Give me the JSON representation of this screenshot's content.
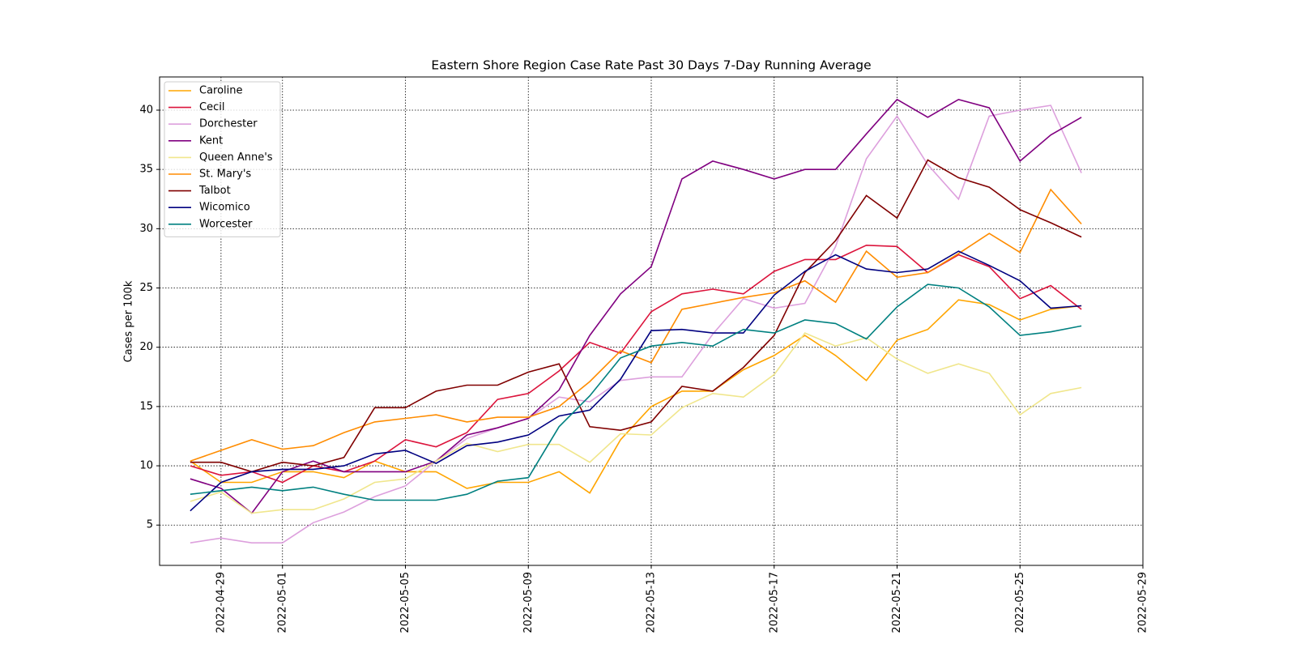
{
  "chart_data": {
    "type": "line",
    "title": "Eastern Shore Region Case Rate  Past 30 Days 7-Day Running Average",
    "y_label": "Cases per 100k",
    "x": [
      "2022-04-28",
      "2022-04-29",
      "2022-04-30",
      "2022-05-01",
      "2022-05-02",
      "2022-05-03",
      "2022-05-04",
      "2022-05-05",
      "2022-05-06",
      "2022-05-07",
      "2022-05-08",
      "2022-05-09",
      "2022-05-10",
      "2022-05-11",
      "2022-05-12",
      "2022-05-13",
      "2022-05-14",
      "2022-05-15",
      "2022-05-16",
      "2022-05-17",
      "2022-05-18",
      "2022-05-19",
      "2022-05-20",
      "2022-05-21",
      "2022-05-22",
      "2022-05-23",
      "2022-05-24",
      "2022-05-25",
      "2022-05-26",
      "2022-05-27"
    ],
    "xlim": [
      "2022-04-27",
      "2022-05-29"
    ],
    "xticks": [
      "2022-04-29",
      "2022-05-01",
      "2022-05-05",
      "2022-05-09",
      "2022-05-13",
      "2022-05-17",
      "2022-05-21",
      "2022-05-25",
      "2022-05-29"
    ],
    "ylim": [
      1.6,
      42.8
    ],
    "yticks": [
      5,
      10,
      15,
      20,
      25,
      30,
      35,
      40
    ],
    "grid": true,
    "legend": "upper left",
    "series": [
      {
        "name": "Caroline",
        "color": "#ffa500",
        "values": [
          10.4,
          8.6,
          8.6,
          9.5,
          9.5,
          9.0,
          10.4,
          9.5,
          9.5,
          8.1,
          8.6,
          8.6,
          9.5,
          7.7,
          12.2,
          15.0,
          16.3,
          16.3,
          18.1,
          19.3,
          21.0,
          19.3,
          17.2,
          20.6,
          21.5,
          24.0,
          23.6,
          22.3,
          23.2,
          23.5
        ]
      },
      {
        "name": "Cecil",
        "color": "#dc143c",
        "values": [
          10.0,
          9.2,
          9.5,
          8.6,
          10.0,
          9.5,
          10.4,
          12.2,
          11.6,
          12.8,
          15.6,
          16.1,
          18.0,
          20.4,
          19.5,
          23.0,
          24.5,
          24.9,
          24.5,
          26.4,
          27.4,
          27.4,
          28.6,
          28.5,
          26.3,
          27.8,
          26.8,
          24.1,
          25.2,
          23.2
        ]
      },
      {
        "name": "Dorchester",
        "color": "#dda0dd",
        "values": [
          3.5,
          3.9,
          3.5,
          3.5,
          5.2,
          6.1,
          7.4,
          8.3,
          10.4,
          12.3,
          13.2,
          14.0,
          15.8,
          15.4,
          17.2,
          17.5,
          17.5,
          21.1,
          24.1,
          23.3,
          23.7,
          28.5,
          35.9,
          39.5,
          35.4,
          32.5,
          39.5,
          40.0,
          40.4,
          34.7
        ]
      },
      {
        "name": "Kent",
        "color": "#800080",
        "values": [
          8.9,
          8.1,
          6.0,
          9.5,
          10.4,
          9.5,
          9.5,
          9.5,
          10.4,
          12.6,
          13.2,
          14.0,
          16.4,
          21.0,
          24.5,
          26.8,
          34.2,
          35.7,
          35.0,
          34.2,
          35.0,
          35.0,
          38.0,
          40.9,
          39.4,
          40.9,
          40.2,
          35.7,
          37.9,
          39.4
        ]
      },
      {
        "name": "Queen Anne's",
        "color": "#f0e68c",
        "values": [
          7.0,
          7.8,
          6.0,
          6.3,
          6.3,
          7.2,
          8.6,
          8.9,
          10.4,
          11.9,
          11.2,
          11.8,
          11.8,
          10.3,
          12.7,
          12.6,
          14.9,
          16.1,
          15.8,
          17.7,
          21.2,
          20.1,
          20.8,
          19.0,
          17.8,
          18.6,
          17.8,
          14.3,
          16.1,
          16.6
        ]
      },
      {
        "name": "St. Mary's",
        "color": "#ff8c00",
        "values": [
          10.4,
          11.3,
          12.2,
          11.4,
          11.7,
          12.8,
          13.7,
          14.0,
          14.3,
          13.7,
          14.1,
          14.1,
          15.0,
          17.1,
          19.7,
          18.7,
          23.2,
          23.7,
          24.2,
          24.6,
          25.6,
          23.8,
          28.1,
          25.9,
          26.3,
          27.9,
          29.6,
          28.0,
          33.3,
          30.4
        ]
      },
      {
        "name": "Talbot",
        "color": "#800000",
        "values": [
          10.3,
          10.3,
          9.5,
          10.3,
          10.0,
          10.7,
          14.9,
          14.9,
          16.3,
          16.8,
          16.8,
          17.9,
          18.6,
          13.3,
          13.0,
          13.7,
          16.7,
          16.3,
          18.3,
          21.0,
          26.3,
          29.0,
          32.8,
          30.9,
          35.8,
          34.3,
          33.5,
          31.6,
          30.5,
          29.3
        ]
      },
      {
        "name": "Wicomico",
        "color": "#000080",
        "values": [
          6.2,
          8.6,
          9.5,
          9.7,
          9.7,
          10.0,
          11.0,
          11.3,
          10.2,
          11.7,
          12.0,
          12.6,
          14.2,
          14.7,
          17.3,
          21.4,
          21.5,
          21.2,
          21.2,
          24.4,
          26.4,
          27.8,
          26.6,
          26.3,
          26.6,
          28.1,
          26.9,
          25.6,
          23.3,
          23.5
        ]
      },
      {
        "name": "Worcester",
        "color": "#008080",
        "values": [
          7.6,
          7.9,
          8.2,
          7.9,
          8.2,
          7.6,
          7.1,
          7.1,
          7.1,
          7.6,
          8.7,
          9.0,
          13.3,
          15.9,
          19.1,
          20.1,
          20.4,
          20.1,
          21.5,
          21.2,
          22.3,
          22.0,
          20.7,
          23.4,
          25.3,
          25.0,
          23.4,
          21.0,
          21.3,
          21.8
        ]
      }
    ]
  }
}
